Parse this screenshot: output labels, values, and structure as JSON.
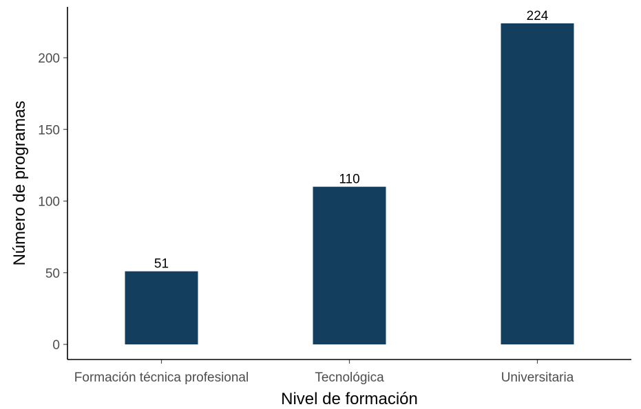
{
  "chart_data": {
    "type": "bar",
    "title": "",
    "xlabel": "Nivel de formación",
    "ylabel": "Número de programas",
    "categories": [
      "Formación técnica profesional",
      "Tecnológica",
      "Universitaria"
    ],
    "values": [
      51,
      110,
      224
    ],
    "data_labels": [
      "51",
      "110",
      "224"
    ],
    "yticks": [
      0,
      50,
      100,
      150,
      200
    ],
    "ylim": [
      0,
      235
    ],
    "grid": false,
    "legend": "none",
    "bar_color": "#133e5e",
    "axis_color": "#000000",
    "tick_label_color": "#4d4d4d"
  }
}
